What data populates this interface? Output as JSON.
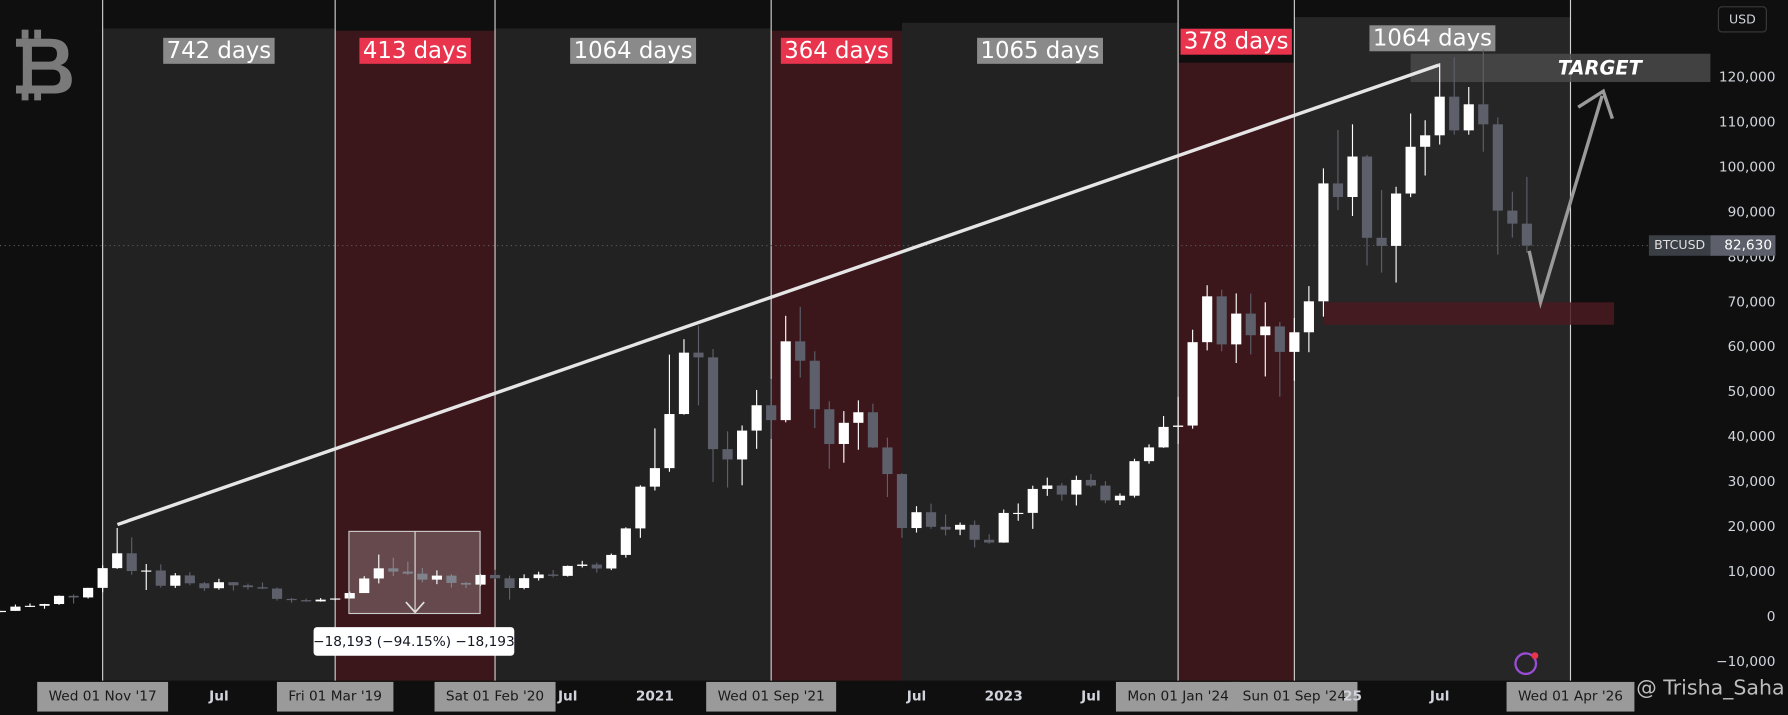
{
  "chart_data": {
    "type": "candlestick",
    "x": [
      "2017-04",
      "2017-05",
      "2017-06",
      "2017-07",
      "2017-08",
      "2017-09",
      "2017-10",
      "2017-11",
      "2017-12",
      "2018-01",
      "2018-02",
      "2018-03",
      "2018-04",
      "2018-05",
      "2018-06",
      "2018-07",
      "2018-08",
      "2018-09",
      "2018-10",
      "2018-11",
      "2018-12",
      "2019-01",
      "2019-02",
      "2019-03",
      "2019-04",
      "2019-05",
      "2019-06",
      "2019-07",
      "2019-08",
      "2019-09",
      "2019-10",
      "2019-11",
      "2019-12",
      "2020-01",
      "2020-02",
      "2020-03",
      "2020-04",
      "2020-05",
      "2020-06",
      "2020-07",
      "2020-08",
      "2020-09",
      "2020-10",
      "2020-11",
      "2020-12",
      "2021-01",
      "2021-02",
      "2021-03",
      "2021-04",
      "2021-05",
      "2021-06",
      "2021-07",
      "2021-08",
      "2021-09",
      "2021-10",
      "2021-11",
      "2021-12",
      "2022-01",
      "2022-02",
      "2022-03",
      "2022-04",
      "2022-05",
      "2022-06",
      "2022-07",
      "2022-08",
      "2022-09",
      "2022-10",
      "2022-11",
      "2022-12",
      "2023-01",
      "2023-02",
      "2023-03",
      "2023-04",
      "2023-05",
      "2023-06",
      "2023-07",
      "2023-08",
      "2023-09",
      "2023-10",
      "2023-11",
      "2023-12",
      "2024-01",
      "2024-02",
      "2024-03",
      "2024-04",
      "2024-05",
      "2024-06",
      "2024-07",
      "2024-08",
      "2024-09",
      "2024-10",
      "2024-11",
      "2024-12",
      "2025-01",
      "2025-02",
      "2025-03",
      "2025-04",
      "2025-05",
      "2025-06",
      "2025-07",
      "2025-08",
      "2025-09",
      "2025-10",
      "2025-11",
      "2025-12",
      "2026-01"
    ],
    "open": [
      1080,
      1350,
      2300,
      2480,
      2875,
      4700,
      4340,
      6470,
      10860,
      14160,
      10220,
      10330,
      6940,
      9240,
      7490,
      6390,
      7730,
      7040,
      6620,
      6320,
      4020,
      3740,
      3460,
      3850,
      4110,
      5320,
      8560,
      10820,
      10090,
      9630,
      8300,
      9200,
      7570,
      7190,
      9350,
      8600,
      6440,
      8630,
      9450,
      9140,
      11350,
      11660,
      10780,
      13800,
      19700,
      28990,
      33110,
      45140,
      58800,
      57750,
      37330,
      35040,
      41460,
      47100,
      43790,
      61320,
      57000,
      46210,
      38480,
      43190,
      45540,
      37710,
      31790,
      19780,
      23300,
      20050,
      19430,
      20490,
      17170,
      16550,
      23140,
      23150,
      28480,
      29250,
      27220,
      30480,
      29230,
      25940,
      26970,
      34660,
      37720,
      42280,
      42580,
      61130,
      71330,
      60640,
      67490,
      62680,
      64630,
      58970,
      63330,
      70220,
      96450,
      93430,
      102430,
      84350,
      82550,
      94200,
      104600,
      107150,
      115750,
      108250,
      114050,
      109600,
      90400,
      87500
    ],
    "high": [
      1350,
      2760,
      2990,
      2920,
      4760,
      5000,
      6470,
      11500,
      19800,
      17700,
      11790,
      11700,
      9760,
      9960,
      7760,
      8490,
      7760,
      7410,
      7680,
      6550,
      4230,
      4110,
      4200,
      4100,
      5640,
      9070,
      13880,
      13180,
      12330,
      10920,
      10370,
      9520,
      7740,
      9580,
      10500,
      9200,
      9480,
      10070,
      10440,
      11440,
      12480,
      12080,
      14100,
      19940,
      29300,
      41950,
      58350,
      61790,
      64850,
      59600,
      41300,
      42600,
      50500,
      52950,
      67000,
      69000,
      59100,
      47990,
      45800,
      48190,
      47440,
      39900,
      31990,
      24650,
      25200,
      22800,
      21000,
      21450,
      18390,
      23900,
      25250,
      29200,
      31000,
      29820,
      31430,
      31800,
      30200,
      27480,
      35200,
      38400,
      44700,
      48970,
      63900,
      73800,
      72800,
      71980,
      71950,
      70000,
      65600,
      66500,
      73600,
      99800,
      108350,
      109600,
      102800,
      95000,
      95700,
      112000,
      110500,
      123200,
      124500,
      117900,
      126200,
      111100,
      94600,
      97900
    ],
    "low": [
      1060,
      1350,
      2200,
      1830,
      2700,
      2970,
      4110,
      5500,
      10700,
      9400,
      6000,
      6530,
      6450,
      7060,
      5780,
      6070,
      5880,
      6100,
      6200,
      3650,
      3160,
      3380,
      3400,
      3720,
      4080,
      5320,
      7460,
      9080,
      9380,
      7710,
      7300,
      6520,
      6430,
      6870,
      8470,
      3850,
      6150,
      8100,
      8830,
      8980,
      10990,
      9850,
      10420,
      13200,
      17600,
      28130,
      32300,
      45000,
      47050,
      30000,
      28800,
      29300,
      37400,
      39600,
      43300,
      53250,
      42000,
      32950,
      34320,
      37200,
      37580,
      26700,
      17600,
      18780,
      19600,
      18150,
      18200,
      15480,
      16300,
      16500,
      21400,
      19600,
      26940,
      25870,
      24800,
      28860,
      25300,
      24900,
      26560,
      34100,
      37620,
      38500,
      41880,
      59300,
      59100,
      56500,
      58400,
      53500,
      49000,
      52550,
      58900,
      66800,
      90500,
      89200,
      78200,
      76600,
      74400,
      93400,
      98200,
      105100,
      107300,
      107300,
      103500,
      80600,
      84400,
      81000
    ],
    "close": [
      1350,
      2300,
      2480,
      2875,
      4700,
      4340,
      6470,
      10860,
      14160,
      10220,
      10330,
      6940,
      9240,
      7490,
      6390,
      7730,
      7040,
      6620,
      6320,
      4020,
      3740,
      3460,
      3850,
      4110,
      5320,
      8560,
      10820,
      10090,
      9630,
      8300,
      9200,
      7570,
      7190,
      9350,
      8600,
      6440,
      8630,
      9450,
      9140,
      11350,
      11660,
      10780,
      13800,
      19700,
      28990,
      33110,
      45140,
      58800,
      57750,
      37330,
      35040,
      41460,
      47100,
      43790,
      61320,
      57000,
      46210,
      38480,
      43190,
      45540,
      37710,
      31790,
      19780,
      23300,
      20050,
      19430,
      20490,
      17170,
      16550,
      23140,
      23150,
      28480,
      29250,
      27220,
      30480,
      29230,
      25940,
      26970,
      34660,
      37720,
      42280,
      42580,
      61130,
      71330,
      60640,
      67490,
      62680,
      64630,
      58970,
      63330,
      70220,
      96450,
      93430,
      102430,
      84350,
      82550,
      94200,
      104600,
      107150,
      115750,
      108250,
      114050,
      109600,
      90400,
      87500,
      82630
    ],
    "up_color": "#ffffff",
    "down_color": "#5d606b",
    "xlim": [
      "2017-04",
      "2027-02"
    ],
    "xticks": [
      {
        "value": "2017-11",
        "label": "Wed 01 Nov '17"
      },
      {
        "value": "2018-07",
        "label": "Jul"
      },
      {
        "value": "2019-03",
        "label": "Fri 01 Mar '19"
      },
      {
        "value": "2020-02",
        "label": "Sat 01 Feb '20"
      },
      {
        "value": "2020-07",
        "label": "Jul"
      },
      {
        "value": "2021-01",
        "label": "2021"
      },
      {
        "value": "2021-09",
        "label": "Wed 01 Sep '21"
      },
      {
        "value": "2022-07",
        "label": "Jul"
      },
      {
        "value": "2023-01",
        "label": "2023"
      },
      {
        "value": "2023-07",
        "label": "Jul"
      },
      {
        "value": "2024-01",
        "label": "Mon 01 Jan '24"
      },
      {
        "value": "2024-09",
        "label": "Sun 01 Sep '24"
      },
      {
        "value": "2025-01",
        "label": "25"
      },
      {
        "value": "2025-07",
        "label": "Jul"
      },
      {
        "value": "2026-04",
        "label": "Wed 01 Apr '26"
      }
    ],
    "ylim": [
      -14200,
      137250
    ],
    "yticks": [
      {
        "value": -10000,
        "label": "−10,000"
      },
      0,
      {
        "value": 10000,
        "label": "10,000"
      },
      {
        "value": 20000,
        "label": "20,000"
      },
      {
        "value": 30000,
        "label": "30,000"
      },
      {
        "value": 40000,
        "label": "40,000"
      },
      {
        "value": 50000,
        "label": "50,000"
      },
      {
        "value": 60000,
        "label": "60,000"
      },
      {
        "value": 70000,
        "label": "70,000"
      },
      {
        "value": 80000,
        "label": "80,000"
      },
      {
        "value": 90000,
        "label": "90,000"
      },
      {
        "value": 100000,
        "label": "100,000"
      },
      {
        "value": 110000,
        "label": "110,000"
      },
      {
        "value": 120000,
        "label": "120,000"
      }
    ],
    "currency": "USD",
    "price_line": {
      "name": "BTCUSD",
      "value": 82630,
      "label": "82,630"
    },
    "regions": [
      {
        "from": "2017-11",
        "to": "2019-03",
        "label": "742 days",
        "color": "#222222",
        "label_color": "#8a8a8a"
      },
      {
        "from": "2019-03",
        "to": "2020-02",
        "label": "413 days",
        "color": "#3b171c",
        "label_color": "#e8344c"
      },
      {
        "from": "2020-02",
        "to": "2021-09",
        "label": "1064 days",
        "color": "#222222",
        "label_color": "#8a8a8a"
      },
      {
        "from": "2021-09",
        "to": "2022-06",
        "label": "364 days",
        "color": "#3b171c",
        "label_color": "#e8344c"
      },
      {
        "from": "2022-06",
        "to": "2024-01",
        "label": "1065 days",
        "color": "#222222",
        "label_color": "#8a8a8a"
      },
      {
        "from": "2024-01",
        "to": "2024-09",
        "label": "378 days",
        "color": "#3b171c",
        "label_color": "#e8344c"
      },
      {
        "from": "2024-09",
        "to": "2026-04",
        "label": "1064 days",
        "color": "#262626",
        "label_color": "#8a8a8a"
      }
    ],
    "date_lines": [
      "2017-11",
      "2019-03",
      "2020-02",
      "2021-09",
      "2024-01",
      "2024-09",
      "2026-04"
    ],
    "support_zone": {
      "from": "2024-11",
      "to": "2026-07",
      "low": 65000,
      "high": 70000,
      "color": "#4a1a20"
    },
    "target_zone": {
      "from": "2025-05",
      "low": 119000,
      "high": 125300,
      "label": "TARGET"
    },
    "measure_label": "−18,193 (−94.15%) −18,193",
    "watermark": "@ Trisha_Saha"
  }
}
